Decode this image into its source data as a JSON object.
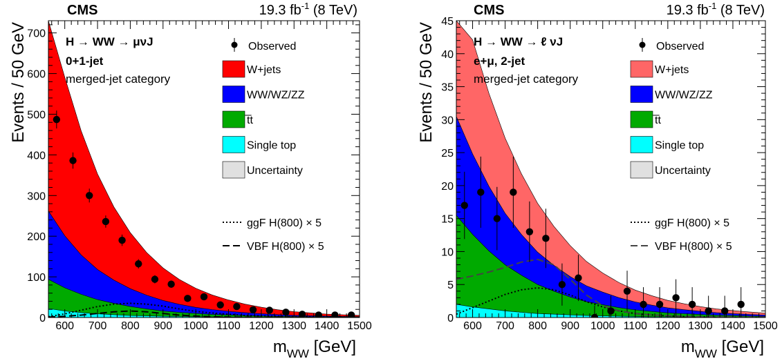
{
  "chart_data": [
    {
      "type": "area",
      "header": {
        "experiment": "CMS",
        "lumi_main": "19.3 fb",
        "lumi_sup": "-1",
        "lumi_energy": " (8 TeV)"
      },
      "process_lines": [
        "H → WW → μνJ",
        "0+1-jet",
        "merged-jet category"
      ],
      "xlabel_main": "m",
      "xlabel_sub": "WW",
      "xlabel_unit": " [GeV]",
      "ylabel": "Events / 50 GeV",
      "xlim": [
        550,
        1500
      ],
      "ylim": [
        0,
        730
      ],
      "xticks": [
        600,
        700,
        800,
        900,
        1000,
        1100,
        1200,
        1300,
        1400,
        1500
      ],
      "yticks": [
        0,
        100,
        200,
        300,
        400,
        500,
        600,
        700
      ],
      "legend": {
        "placement": "top-right",
        "observed": "Observed",
        "entries": [
          {
            "label": "W+jets",
            "color": "#ff0000"
          },
          {
            "label": "WW/WZ/ZZ",
            "color": "#0000ff"
          },
          {
            "label": "t̅t",
            "color": "#00aa00"
          },
          {
            "label": "Single top",
            "color": "#00ffff"
          },
          {
            "label": "Uncertainty",
            "color": "#e0e0e0"
          }
        ],
        "signals": [
          {
            "label": "ggF H(800) × 5",
            "style": "dotted"
          },
          {
            "label": "VBF H(800) × 5",
            "style": "dashed"
          }
        ]
      },
      "stack_x": [
        550,
        600,
        650,
        700,
        750,
        800,
        850,
        900,
        950,
        1000,
        1050,
        1100,
        1150,
        1200,
        1250,
        1300,
        1350,
        1400,
        1450,
        1500
      ],
      "single_top": [
        22,
        16,
        12,
        9,
        7,
        5,
        4,
        3,
        2.5,
        2,
        1.5,
        1.2,
        1,
        0.8,
        0.6,
        0.5,
        0.4,
        0.3,
        0.25,
        0.2
      ],
      "ttbar": [
        72,
        57,
        45,
        35,
        28,
        22,
        17,
        13,
        10,
        8,
        6,
        5,
        4,
        3,
        2.5,
        2,
        1.5,
        1.2,
        1,
        0.8
      ],
      "diboson": [
        168,
        128,
        97,
        74,
        57,
        44,
        34,
        26,
        20,
        15,
        12,
        9,
        7,
        5.5,
        4,
        3,
        2.5,
        2,
        1.5,
        1.2
      ],
      "wjets": [
        480,
        390,
        305,
        235,
        180,
        138,
        105,
        80,
        61,
        47,
        36,
        28,
        21,
        16,
        12,
        9,
        7,
        5,
        4,
        3
      ],
      "unc_up": [
        540,
        430,
        335,
        258,
        197,
        150,
        115,
        88,
        67,
        51,
        39,
        30,
        23,
        17,
        13,
        10,
        7.5,
        5.5,
        4.3,
        3.3
      ],
      "unc_down": [
        430,
        352,
        278,
        214,
        164,
        127,
        97,
        74,
        56,
        43,
        33,
        26,
        19,
        15,
        11,
        8.3,
        6.5,
        4.6,
        3.7,
        2.7
      ],
      "data": {
        "x": [
          575,
          625,
          675,
          725,
          775,
          825,
          875,
          925,
          975,
          1025,
          1075,
          1125,
          1175,
          1225,
          1275,
          1325,
          1375,
          1425,
          1475
        ],
        "y": [
          487,
          386,
          300,
          236,
          190,
          132,
          94,
          82,
          47,
          51,
          31,
          27,
          19,
          18,
          13,
          8,
          6,
          6,
          6
        ],
        "err": [
          22,
          20,
          17,
          15,
          14,
          11.5,
          10,
          9,
          7,
          7,
          5.5,
          5,
          4.5,
          4.5,
          3.6,
          2.8,
          2.4,
          2.4,
          2.4
        ]
      },
      "ggf_signal": {
        "x": [
          550,
          600,
          650,
          700,
          750,
          800,
          850,
          900,
          950,
          1000,
          1050,
          1100,
          1150,
          1200,
          1250,
          1300,
          1350,
          1400,
          1450,
          1500
        ],
        "y": [
          2,
          9,
          18,
          27,
          33,
          35,
          33,
          28,
          21,
          15,
          11,
          8,
          5,
          4,
          3,
          2,
          1.5,
          1,
          0.8,
          0.5
        ]
      },
      "vbf_signal": {
        "x": [
          550,
          600,
          650,
          700,
          750,
          800,
          850,
          900,
          950,
          1000,
          1050,
          1100,
          1150,
          1200,
          1250,
          1300,
          1350,
          1400,
          1450,
          1500
        ],
        "y": [
          1,
          3,
          6,
          10,
          14,
          16,
          14,
          10,
          6,
          3.5,
          2,
          1.2,
          0.8,
          0.5,
          0.3,
          0.2,
          0.15,
          0.1,
          0.1,
          0.1
        ]
      }
    },
    {
      "type": "area",
      "header": {
        "experiment": "CMS",
        "lumi_main": "19.3 fb",
        "lumi_sup": "-1",
        "lumi_energy": " (8 TeV)"
      },
      "process_lines": [
        "H → WW → ℓ νJ",
        "e+μ, 2-jet",
        "merged-jet category"
      ],
      "xlabel_main": "m",
      "xlabel_sub": "WW",
      "xlabel_unit": " [GeV]",
      "ylabel": "Events / 50 GeV",
      "xlim": [
        550,
        1500
      ],
      "ylim": [
        0,
        45
      ],
      "xticks": [
        600,
        700,
        800,
        900,
        1000,
        1100,
        1200,
        1300,
        1400,
        1500
      ],
      "yticks": [
        0,
        5,
        10,
        15,
        20,
        25,
        30,
        35,
        40,
        45
      ],
      "legend": {
        "placement": "top-right",
        "observed": "Observed",
        "entries": [
          {
            "label": "W+jets",
            "color": "#ff0000"
          },
          {
            "label": "WW/WZ/ZZ",
            "color": "#0000ff"
          },
          {
            "label": "t̅t",
            "color": "#00aa00"
          },
          {
            "label": "Single top",
            "color": "#00ffff"
          },
          {
            "label": "Uncertainty",
            "color": "#e0e0e0"
          }
        ],
        "signals": [
          {
            "label": "ggF H(800) × 5",
            "style": "dotted"
          },
          {
            "label": "VBF H(800) × 5",
            "style": "dashed"
          }
        ]
      },
      "stack_x": [
        550,
        600,
        650,
        700,
        750,
        800,
        850,
        900,
        950,
        1000,
        1050,
        1100,
        1150,
        1200,
        1250,
        1300,
        1350,
        1400,
        1450,
        1500
      ],
      "single_top": [
        2,
        1.6,
        1.3,
        1.0,
        0.8,
        0.6,
        0.5,
        0.4,
        0.3,
        0.25,
        0.2,
        0.15,
        0.12,
        0.1,
        0.08,
        0.06,
        0.05,
        0.04,
        0.03,
        0.03
      ],
      "ttbar": [
        13.5,
        11,
        8.8,
        7,
        5.6,
        4.4,
        3.5,
        2.7,
        2.1,
        1.7,
        1.3,
        1.0,
        0.8,
        0.6,
        0.5,
        0.4,
        0.3,
        0.25,
        0.2,
        0.15
      ],
      "diboson": [
        15,
        12.2,
        9.8,
        7.8,
        6.2,
        4.9,
        3.9,
        3.1,
        2.4,
        1.9,
        1.5,
        1.2,
        0.95,
        0.75,
        0.6,
        0.47,
        0.37,
        0.3,
        0.24,
        0.19
      ],
      "wjets": [
        21,
        17.3,
        14.1,
        11.4,
        9.2,
        7.4,
        5.9,
        4.7,
        3.7,
        2.9,
        2.3,
        1.8,
        1.45,
        1.15,
        0.9,
        0.72,
        0.58,
        0.47,
        0.38,
        0.3
      ],
      "unc_up": [
        27,
        22.5,
        18.5,
        15,
        12.1,
        9.7,
        7.8,
        6.2,
        4.9,
        3.9,
        3.1,
        2.5,
        2.0,
        1.6,
        1.3,
        1.05,
        0.85,
        0.7,
        0.58,
        0.48
      ],
      "unc_down": [
        16,
        13.2,
        10.8,
        8.7,
        7.0,
        5.6,
        4.5,
        3.6,
        2.8,
        2.2,
        1.7,
        1.35,
        1.05,
        0.8,
        0.63,
        0.5,
        0.4,
        0.32,
        0.25,
        0.2
      ],
      "data": {
        "x": [
          575,
          625,
          675,
          725,
          775,
          825,
          875,
          925,
          975,
          1025,
          1075,
          1125,
          1175,
          1225,
          1275,
          1325,
          1375,
          1425
        ],
        "y": [
          17,
          19,
          15,
          19,
          13,
          12,
          5,
          6,
          0,
          1,
          4,
          2,
          2,
          3,
          2,
          1,
          1,
          2
        ],
        "err": [
          5.1,
          5.4,
          4.8,
          5.4,
          4.6,
          4.5,
          3.2,
          3.5,
          1.8,
          2.3,
          3.1,
          2.6,
          2.6,
          2.8,
          2.6,
          2.3,
          2.3,
          2.6
        ]
      },
      "ggf_signal": {
        "x": [
          550,
          600,
          650,
          700,
          750,
          800,
          850,
          900,
          950,
          1000,
          1050,
          1100,
          1150,
          1200,
          1250,
          1300,
          1350,
          1400,
          1450,
          1500
        ],
        "y": [
          0.5,
          1.5,
          2.5,
          3.5,
          4.2,
          4.5,
          4.2,
          3.4,
          2.4,
          1.6,
          1.0,
          0.6,
          0.4,
          0.25,
          0.15,
          0.1,
          0.05,
          0.03,
          0.02,
          0.01
        ]
      },
      "vbf_signal": {
        "x": [
          550,
          600,
          650,
          700,
          750,
          800,
          850,
          900,
          950,
          1000,
          1050,
          1100,
          1150,
          1200,
          1250,
          1300,
          1350,
          1400,
          1450,
          1500
        ],
        "y": [
          5.8,
          6.3,
          6.9,
          7.6,
          8.4,
          8.8,
          8.0,
          5.8,
          3.4,
          1.8,
          1.0,
          0.6,
          0.4,
          0.3,
          0.2,
          0.15,
          0.1,
          0.08,
          0.06,
          0.05
        ]
      }
    }
  ]
}
